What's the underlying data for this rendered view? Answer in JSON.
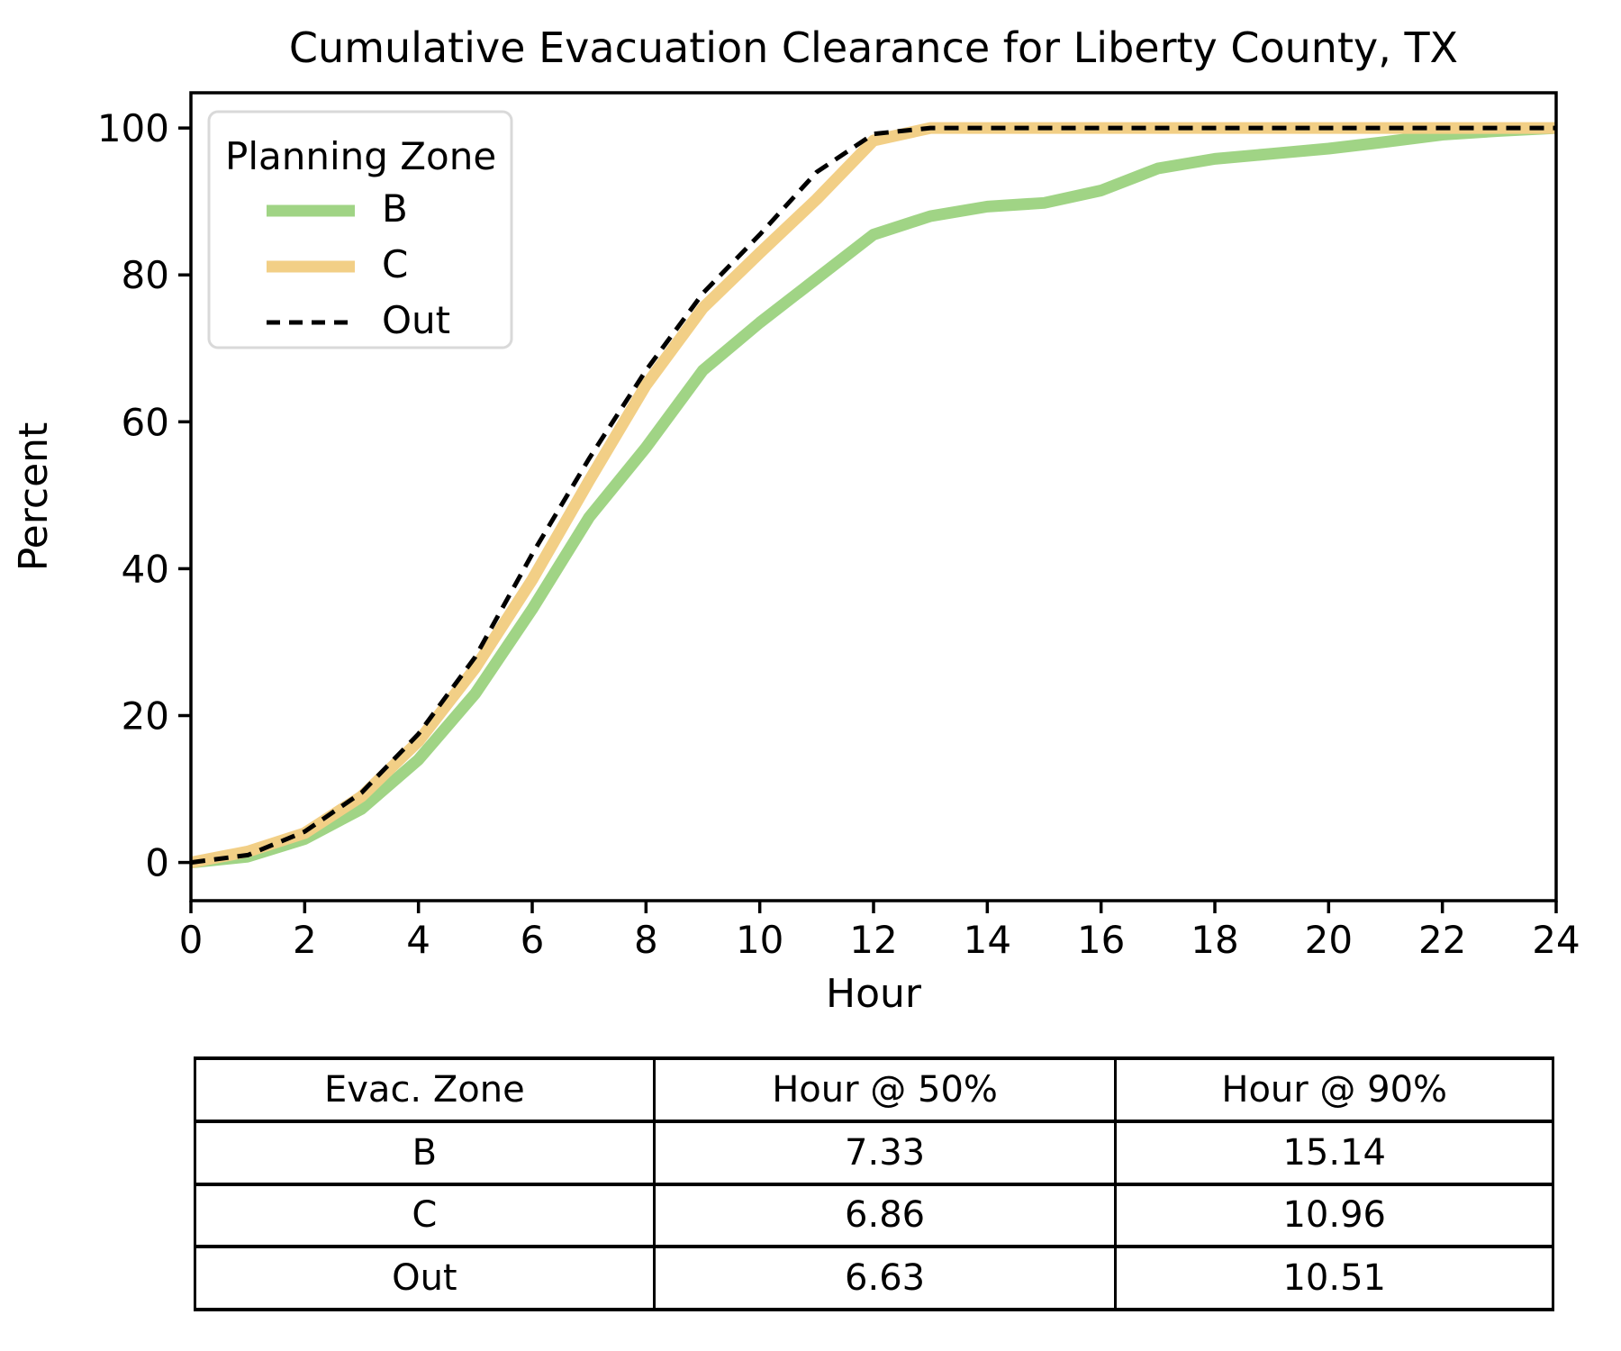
{
  "title": "Cumulative Evacuation Clearance for Liberty County, TX",
  "chart_data": {
    "type": "line",
    "title": "Cumulative Evacuation Clearance for Liberty County, TX",
    "xlabel": "Hour",
    "ylabel": "Percent",
    "xlim": [
      0,
      24
    ],
    "ylim": [
      -5.2,
      104.8
    ],
    "xticks": [
      0,
      2,
      4,
      6,
      8,
      10,
      12,
      14,
      16,
      18,
      20,
      22,
      24
    ],
    "yticks": [
      0,
      20,
      40,
      60,
      80,
      100
    ],
    "grid": false,
    "legend_title": "Planning Zone",
    "legend_position": "upper left",
    "x": [
      0,
      1,
      2,
      3,
      4,
      5,
      6,
      7,
      8,
      9,
      10,
      11,
      12,
      13,
      14,
      15,
      16,
      17,
      18,
      19,
      20,
      21,
      22,
      23,
      24
    ],
    "series": [
      {
        "name": "B",
        "color": "#a0d485",
        "dash": "solid",
        "width": 13,
        "values": [
          0,
          0.8,
          3.2,
          7.3,
          14,
          23,
          34.5,
          47,
          56.5,
          67,
          73.5,
          79.5,
          85.5,
          88,
          89.3,
          89.8,
          91.5,
          94.5,
          95.8,
          96.5,
          97.2,
          98.1,
          99.1,
          99.6,
          100
        ]
      },
      {
        "name": "C",
        "color": "#f2cf86",
        "dash": "solid",
        "width": 13,
        "values": [
          0,
          1.5,
          4,
          9,
          16.5,
          26.5,
          38.5,
          52,
          65,
          75.5,
          83,
          90.3,
          98.3,
          100,
          100,
          100,
          100,
          100,
          100,
          100,
          100,
          100,
          100,
          100,
          100
        ]
      },
      {
        "name": "Out",
        "color": "#000000",
        "dash": "dashed",
        "width": 5,
        "values": [
          0,
          1,
          4.2,
          9.5,
          17.5,
          28,
          42,
          55,
          67,
          77.5,
          85.5,
          94,
          99.2,
          100,
          100,
          100,
          100,
          100,
          100,
          100,
          100,
          100,
          100,
          100,
          100
        ]
      }
    ]
  },
  "table": {
    "headers": [
      "Evac. Zone",
      "Hour @ 50%",
      "Hour @ 90%"
    ],
    "rows": [
      [
        "B",
        "7.33",
        "15.14"
      ],
      [
        "C",
        "6.86",
        "10.96"
      ],
      [
        "Out",
        "6.63",
        "10.51"
      ]
    ]
  }
}
